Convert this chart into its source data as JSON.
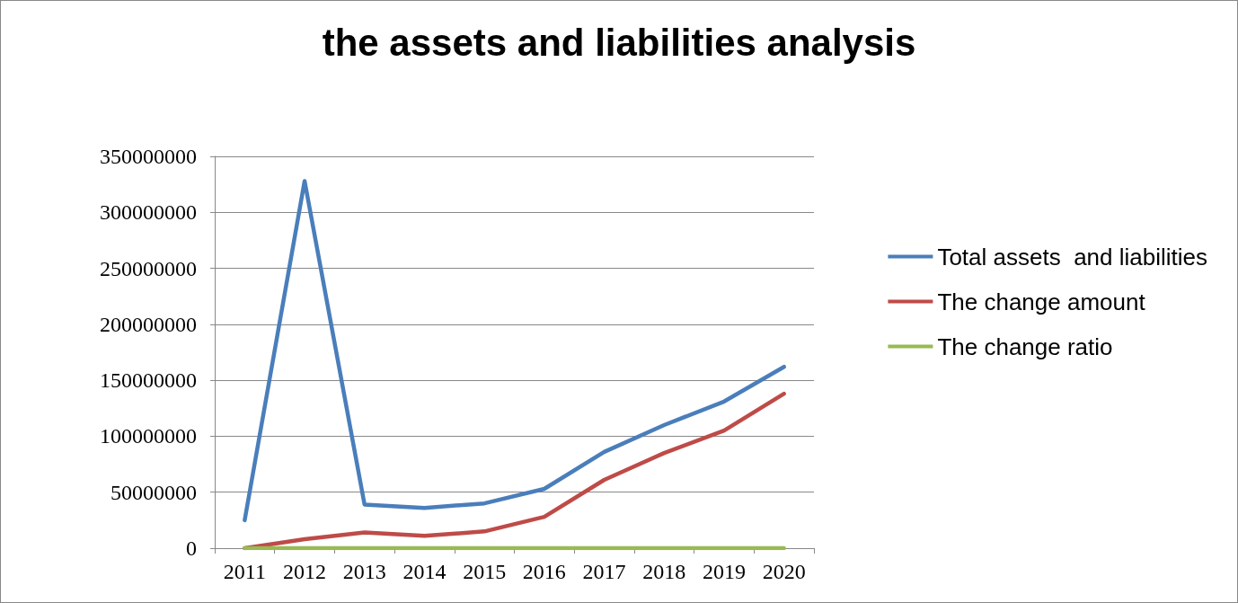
{
  "chart_data": {
    "type": "line",
    "title": "the assets and liabilities analysis",
    "categories": [
      "2011",
      "2012",
      "2013",
      "2014",
      "2015",
      "2016",
      "2017",
      "2018",
      "2019",
      "2020"
    ],
    "series": [
      {
        "name": "Total assets  and liabilities",
        "color": "#4a7ebb",
        "values": [
          25000000,
          328000000,
          39000000,
          36000000,
          40000000,
          53000000,
          86000000,
          110000000,
          131000000,
          162000000
        ]
      },
      {
        "name": "The change amount",
        "color": "#be4b48",
        "values": [
          0,
          8000000,
          14000000,
          11000000,
          15000000,
          28000000,
          61000000,
          85000000,
          105000000,
          138000000
        ]
      },
      {
        "name": "The change ratio",
        "color": "#98b954",
        "values": [
          0,
          0,
          0,
          0,
          0,
          0,
          0,
          0,
          0,
          0
        ]
      }
    ],
    "ylim": [
      0,
      350000000
    ],
    "yticks": [
      0,
      50000000,
      100000000,
      150000000,
      200000000,
      250000000,
      300000000,
      350000000
    ],
    "grid": "y",
    "legend": "right",
    "marker": "none",
    "line_style": "solid"
  }
}
